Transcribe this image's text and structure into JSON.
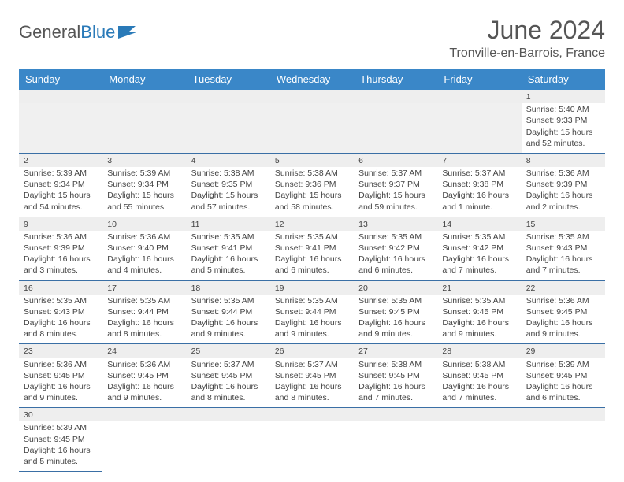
{
  "logo": {
    "text1": "General",
    "text2": "Blue"
  },
  "header": {
    "title": "June 2024",
    "location": "Tronville-en-Barrois, France"
  },
  "columns": [
    "Sunday",
    "Monday",
    "Tuesday",
    "Wednesday",
    "Thursday",
    "Friday",
    "Saturday"
  ],
  "colors": {
    "header_bg": "#3a87c8",
    "header_text": "#ffffff",
    "rule": "#3a6fa5",
    "daynum_bg": "#eeeeee",
    "text": "#444444"
  },
  "weeks": [
    [
      null,
      null,
      null,
      null,
      null,
      null,
      {
        "n": "1",
        "sunrise": "5:40 AM",
        "sunset": "9:33 PM",
        "daylight": "15 hours and 52 minutes."
      }
    ],
    [
      {
        "n": "2",
        "sunrise": "5:39 AM",
        "sunset": "9:34 PM",
        "daylight": "15 hours and 54 minutes."
      },
      {
        "n": "3",
        "sunrise": "5:39 AM",
        "sunset": "9:34 PM",
        "daylight": "15 hours and 55 minutes."
      },
      {
        "n": "4",
        "sunrise": "5:38 AM",
        "sunset": "9:35 PM",
        "daylight": "15 hours and 57 minutes."
      },
      {
        "n": "5",
        "sunrise": "5:38 AM",
        "sunset": "9:36 PM",
        "daylight": "15 hours and 58 minutes."
      },
      {
        "n": "6",
        "sunrise": "5:37 AM",
        "sunset": "9:37 PM",
        "daylight": "15 hours and 59 minutes."
      },
      {
        "n": "7",
        "sunrise": "5:37 AM",
        "sunset": "9:38 PM",
        "daylight": "16 hours and 1 minute."
      },
      {
        "n": "8",
        "sunrise": "5:36 AM",
        "sunset": "9:39 PM",
        "daylight": "16 hours and 2 minutes."
      }
    ],
    [
      {
        "n": "9",
        "sunrise": "5:36 AM",
        "sunset": "9:39 PM",
        "daylight": "16 hours and 3 minutes."
      },
      {
        "n": "10",
        "sunrise": "5:36 AM",
        "sunset": "9:40 PM",
        "daylight": "16 hours and 4 minutes."
      },
      {
        "n": "11",
        "sunrise": "5:35 AM",
        "sunset": "9:41 PM",
        "daylight": "16 hours and 5 minutes."
      },
      {
        "n": "12",
        "sunrise": "5:35 AM",
        "sunset": "9:41 PM",
        "daylight": "16 hours and 6 minutes."
      },
      {
        "n": "13",
        "sunrise": "5:35 AM",
        "sunset": "9:42 PM",
        "daylight": "16 hours and 6 minutes."
      },
      {
        "n": "14",
        "sunrise": "5:35 AM",
        "sunset": "9:42 PM",
        "daylight": "16 hours and 7 minutes."
      },
      {
        "n": "15",
        "sunrise": "5:35 AM",
        "sunset": "9:43 PM",
        "daylight": "16 hours and 7 minutes."
      }
    ],
    [
      {
        "n": "16",
        "sunrise": "5:35 AM",
        "sunset": "9:43 PM",
        "daylight": "16 hours and 8 minutes."
      },
      {
        "n": "17",
        "sunrise": "5:35 AM",
        "sunset": "9:44 PM",
        "daylight": "16 hours and 8 minutes."
      },
      {
        "n": "18",
        "sunrise": "5:35 AM",
        "sunset": "9:44 PM",
        "daylight": "16 hours and 9 minutes."
      },
      {
        "n": "19",
        "sunrise": "5:35 AM",
        "sunset": "9:44 PM",
        "daylight": "16 hours and 9 minutes."
      },
      {
        "n": "20",
        "sunrise": "5:35 AM",
        "sunset": "9:45 PM",
        "daylight": "16 hours and 9 minutes."
      },
      {
        "n": "21",
        "sunrise": "5:35 AM",
        "sunset": "9:45 PM",
        "daylight": "16 hours and 9 minutes."
      },
      {
        "n": "22",
        "sunrise": "5:36 AM",
        "sunset": "9:45 PM",
        "daylight": "16 hours and 9 minutes."
      }
    ],
    [
      {
        "n": "23",
        "sunrise": "5:36 AM",
        "sunset": "9:45 PM",
        "daylight": "16 hours and 9 minutes."
      },
      {
        "n": "24",
        "sunrise": "5:36 AM",
        "sunset": "9:45 PM",
        "daylight": "16 hours and 9 minutes."
      },
      {
        "n": "25",
        "sunrise": "5:37 AM",
        "sunset": "9:45 PM",
        "daylight": "16 hours and 8 minutes."
      },
      {
        "n": "26",
        "sunrise": "5:37 AM",
        "sunset": "9:45 PM",
        "daylight": "16 hours and 8 minutes."
      },
      {
        "n": "27",
        "sunrise": "5:38 AM",
        "sunset": "9:45 PM",
        "daylight": "16 hours and 7 minutes."
      },
      {
        "n": "28",
        "sunrise": "5:38 AM",
        "sunset": "9:45 PM",
        "daylight": "16 hours and 7 minutes."
      },
      {
        "n": "29",
        "sunrise": "5:39 AM",
        "sunset": "9:45 PM",
        "daylight": "16 hours and 6 minutes."
      }
    ],
    [
      {
        "n": "30",
        "sunrise": "5:39 AM",
        "sunset": "9:45 PM",
        "daylight": "16 hours and 5 minutes."
      },
      null,
      null,
      null,
      null,
      null,
      null
    ]
  ]
}
